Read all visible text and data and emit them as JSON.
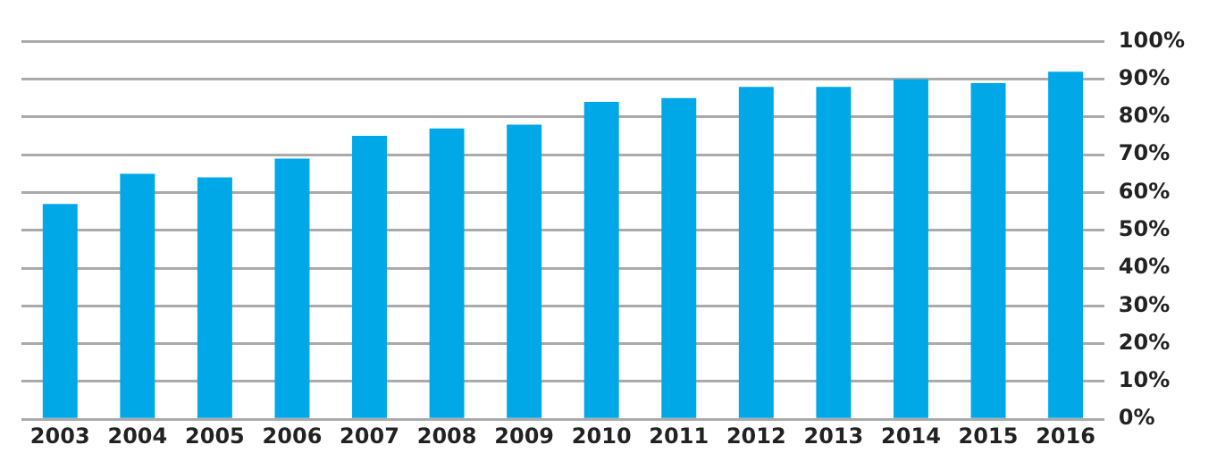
{
  "chart_data": {
    "type": "bar",
    "categories": [
      "2003",
      "2004",
      "2005",
      "2006",
      "2007",
      "2008",
      "2009",
      "2010",
      "2011",
      "2012",
      "2013",
      "2014",
      "2015",
      "2016"
    ],
    "values": [
      57,
      65,
      64,
      69,
      75,
      77,
      78,
      84,
      85,
      88,
      88,
      90,
      89,
      92
    ],
    "color": "#00a8e8",
    "ylim": [
      0,
      100
    ],
    "yticks": [
      {
        "value": 0,
        "label": "0%"
      },
      {
        "value": 10,
        "label": "10%"
      },
      {
        "value": 20,
        "label": "20%"
      },
      {
        "value": 30,
        "label": "30%"
      },
      {
        "value": 40,
        "label": "40%"
      },
      {
        "value": 50,
        "label": "50%"
      },
      {
        "value": 60,
        "label": "60%"
      },
      {
        "value": 70,
        "label": "70%"
      },
      {
        "value": 80,
        "label": "80%"
      },
      {
        "value": 90,
        "label": "90%"
      },
      {
        "value": 100,
        "label": "100%"
      }
    ],
    "grid": "y"
  }
}
